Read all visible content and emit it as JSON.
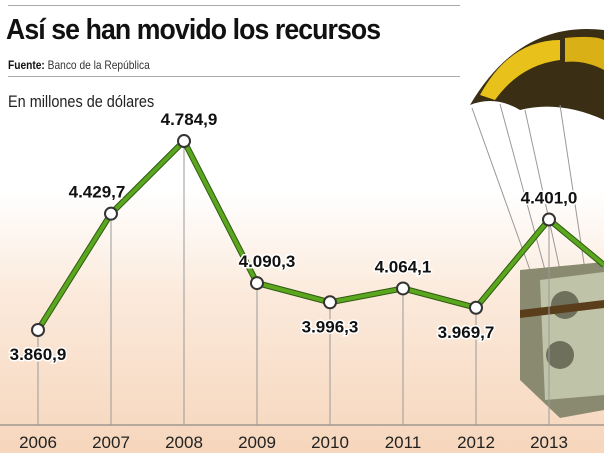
{
  "header": {
    "title": "Así se han movido los recursos",
    "source_label": "Fuente:",
    "source": "Banco de la República",
    "unit": "En millones de dólares"
  },
  "colors": {
    "line": "#5aa61e",
    "point_fill": "#ffffff",
    "point_stroke": "#333333"
  },
  "chart_data": {
    "type": "line",
    "title": "Así se han movido los recursos",
    "subtitle": "En millones de dólares",
    "xlabel": "",
    "ylabel": "En millones de dólares",
    "categories": [
      "2006",
      "2007",
      "2008",
      "2009",
      "2010",
      "2011",
      "2012",
      "2013"
    ],
    "labels": [
      "3.860,9",
      "4.429,7",
      "4.784,9",
      "4.090,3",
      "3.996,3",
      "4.064,1",
      "3.969,7",
      "4.401,0"
    ],
    "series": [
      {
        "name": "Recursos",
        "values": [
          3860.9,
          4429.7,
          4784.9,
          4090.3,
          3996.3,
          4064.1,
          3969.7,
          4401.0
        ]
      }
    ],
    "grid": false
  }
}
